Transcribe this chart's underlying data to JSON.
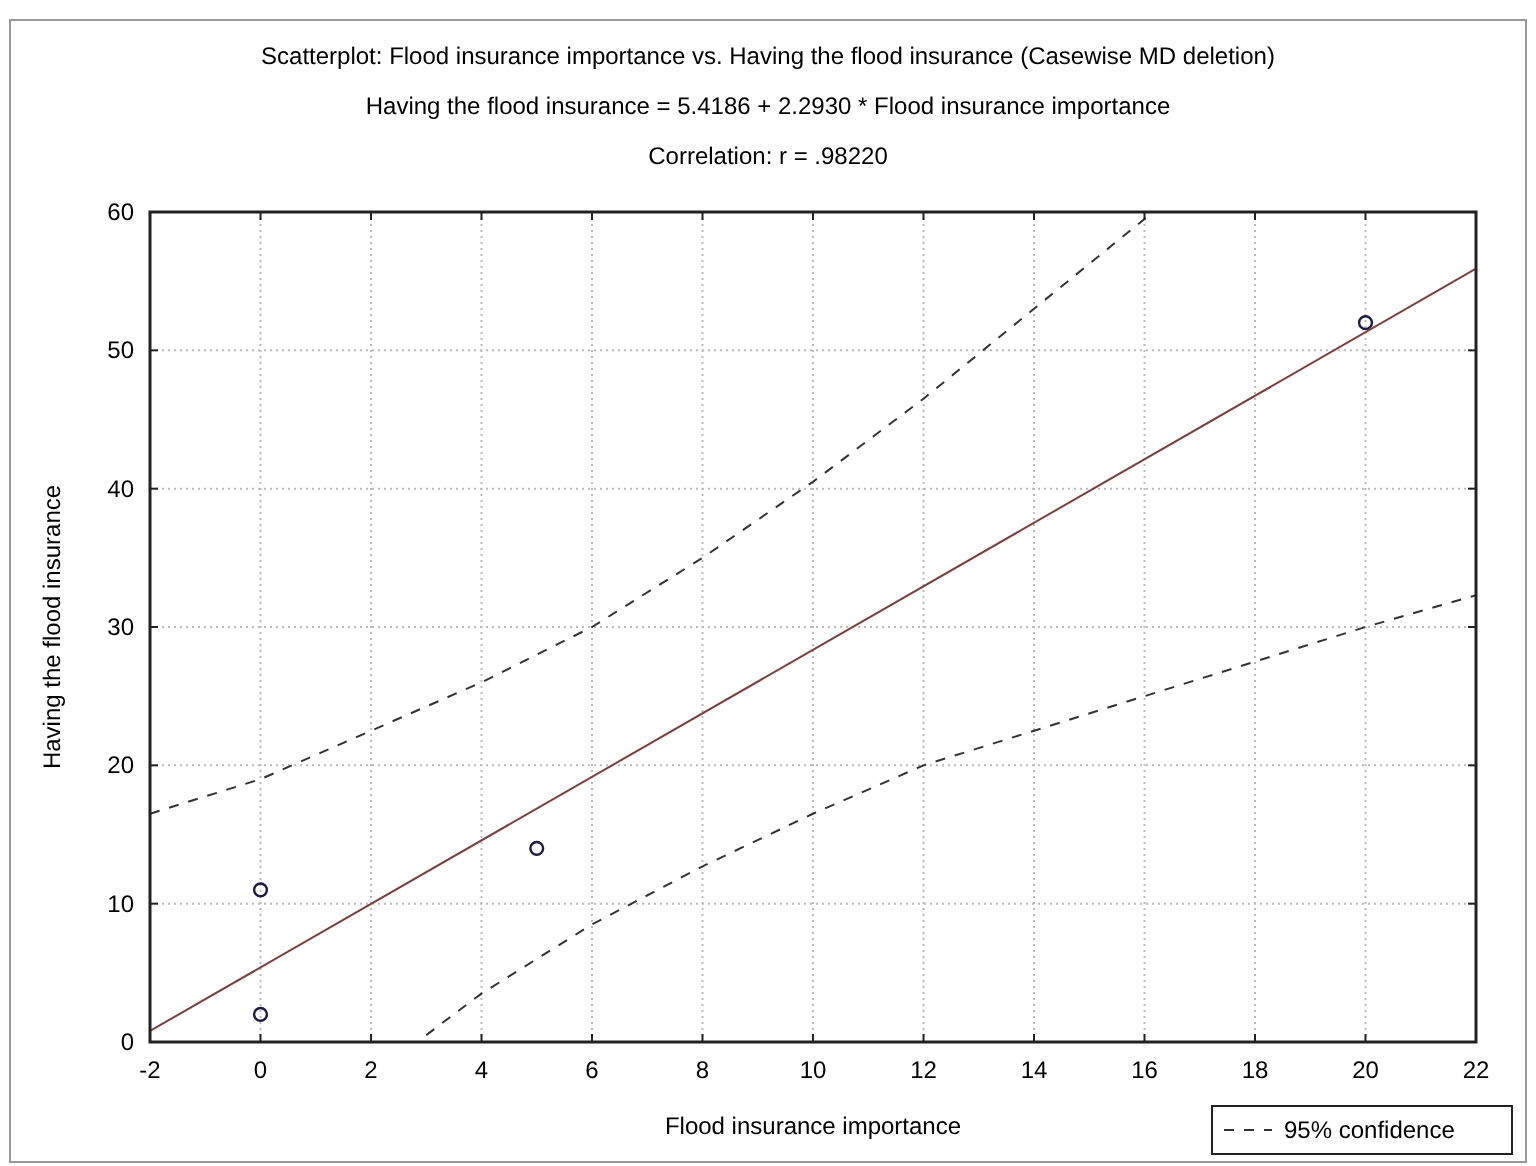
{
  "chart_data": {
    "type": "scatter",
    "title": "Scatterplot: Flood insurance importance vs. Having the flood insurance (Casewise MD deletion)",
    "subtitle": "Having the flood insurance = 5.4186 + 2.2930 * Flood insurance importance",
    "annotations": [
      "Correlation: r = .98220"
    ],
    "xlabel": "Flood insurance importance",
    "ylabel": "Having the flood insurance",
    "xlim": [
      -2,
      22
    ],
    "xticks": [
      -2,
      0,
      2,
      4,
      6,
      8,
      10,
      12,
      14,
      16,
      18,
      20,
      22
    ],
    "ylim": [
      0,
      60
    ],
    "yticks": [
      0,
      10,
      20,
      30,
      40,
      50,
      60
    ],
    "grid": true,
    "legend": "bottom right",
    "series": [
      {
        "marker": "circle",
        "color": "#1c1c44",
        "x": [
          0,
          0,
          5,
          20
        ],
        "values": [
          11,
          2,
          14,
          52
        ]
      },
      {
        "type": "line",
        "marker": "none",
        "line_style": "solid",
        "color": "#7a4040",
        "x": [
          -2,
          22
        ],
        "values": [
          0.8,
          55.9
        ]
      },
      {
        "type": "line",
        "name": "95% confidence",
        "marker": "none",
        "line_style": "dashed",
        "color": "#333333",
        "x": [
          -2,
          0,
          2,
          4,
          6,
          8,
          10,
          12,
          14,
          16,
          16.1
        ],
        "values": [
          16.5,
          19,
          22.5,
          26,
          30,
          35,
          40.5,
          46.5,
          53,
          59.5,
          60
        ]
      },
      {
        "type": "line",
        "marker": "none",
        "line_style": "dashed",
        "color": "#333333",
        "x": [
          3,
          4,
          6,
          8,
          10,
          12,
          14,
          16,
          18,
          20,
          22
        ],
        "values": [
          0.5,
          3.5,
          8.5,
          12.7,
          16.5,
          20,
          22.5,
          25,
          27.5,
          30,
          32.3
        ]
      }
    ]
  }
}
